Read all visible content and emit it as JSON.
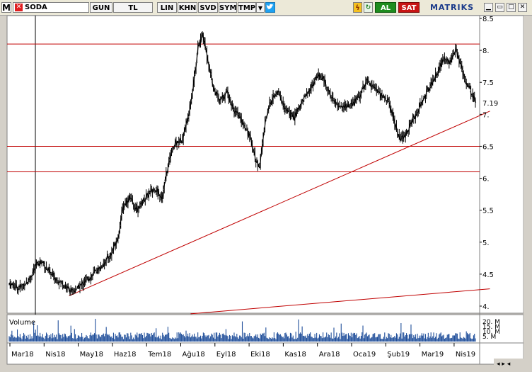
{
  "toolbar": {
    "logo": "M",
    "symbol": "SODA",
    "buttons": [
      "GUN",
      "TL",
      "LIN",
      "KHN",
      "SVD",
      "SYM",
      "TMP"
    ],
    "buy_label": "AL",
    "sell_label": "SAT",
    "brand": "MATRIKS"
  },
  "colors": {
    "candle": "#000000",
    "level_line": "#c00000",
    "trend_line": "#c00000",
    "volume_bar": "#1f4e9a",
    "panel_bg": "#ffffff",
    "frame_bg": "#d4d0c8"
  },
  "chart_data": {
    "type": "line",
    "symbol": "SODA",
    "y_axis": {
      "ticks": [
        "8.5",
        "8.",
        "7.5",
        "7.",
        "6.5",
        "6.",
        "5.5",
        "5.",
        "4.5",
        "4."
      ],
      "ylim": [
        3.95,
        8.55
      ]
    },
    "last_price_label": "7.19",
    "x_axis": {
      "ticks": [
        "Mar18",
        "Nis18",
        "May18",
        "Haz18",
        "Tem18",
        "Ağu18",
        "Eyl18",
        "Eki18",
        "Kas18",
        "Ara18",
        "Oca19",
        "Şub19",
        "Mar19",
        "Nis19"
      ]
    },
    "price_keypoints": [
      [
        0,
        4.35
      ],
      [
        10,
        4.28
      ],
      [
        20,
        4.38
      ],
      [
        30,
        4.65
      ],
      [
        36,
        4.7
      ],
      [
        45,
        4.5
      ],
      [
        55,
        4.4
      ],
      [
        62,
        4.3
      ],
      [
        70,
        4.22
      ],
      [
        78,
        4.32
      ],
      [
        88,
        4.45
      ],
      [
        100,
        4.6
      ],
      [
        112,
        4.82
      ],
      [
        120,
        5.1
      ],
      [
        125,
        5.55
      ],
      [
        132,
        5.7
      ],
      [
        140,
        5.5
      ],
      [
        150,
        5.7
      ],
      [
        160,
        5.85
      ],
      [
        168,
        5.7
      ],
      [
        172,
        6.0
      ],
      [
        178,
        6.4
      ],
      [
        183,
        6.55
      ],
      [
        190,
        6.6
      ],
      [
        196,
        6.9
      ],
      [
        202,
        7.4
      ],
      [
        208,
        8.05
      ],
      [
        213,
        8.25
      ],
      [
        218,
        7.9
      ],
      [
        225,
        7.4
      ],
      [
        232,
        7.2
      ],
      [
        240,
        7.35
      ],
      [
        248,
        7.05
      ],
      [
        256,
        6.9
      ],
      [
        262,
        6.75
      ],
      [
        268,
        6.5
      ],
      [
        272,
        6.25
      ],
      [
        276,
        6.2
      ],
      [
        282,
        6.9
      ],
      [
        288,
        7.2
      ],
      [
        296,
        7.35
      ],
      [
        305,
        7.05
      ],
      [
        314,
        6.95
      ],
      [
        324,
        7.25
      ],
      [
        332,
        7.4
      ],
      [
        340,
        7.62
      ],
      [
        346,
        7.55
      ],
      [
        352,
        7.35
      ],
      [
        360,
        7.15
      ],
      [
        368,
        7.12
      ],
      [
        378,
        7.15
      ],
      [
        386,
        7.3
      ],
      [
        394,
        7.55
      ],
      [
        402,
        7.42
      ],
      [
        410,
        7.3
      ],
      [
        418,
        7.2
      ],
      [
        424,
        6.9
      ],
      [
        430,
        6.6
      ],
      [
        436,
        6.65
      ],
      [
        442,
        6.85
      ],
      [
        450,
        7.05
      ],
      [
        458,
        7.3
      ],
      [
        466,
        7.5
      ],
      [
        474,
        7.72
      ],
      [
        480,
        7.9
      ],
      [
        486,
        7.82
      ],
      [
        492,
        8.0
      ],
      [
        498,
        7.75
      ],
      [
        504,
        7.5
      ],
      [
        510,
        7.3
      ],
      [
        514,
        7.19
      ]
    ],
    "price_x_max": 514,
    "horizontal_levels": [
      8.1,
      6.5,
      6.1
    ],
    "trend_lines": [
      {
        "from": [
          66,
          4.16
        ],
        "to": [
          530,
          7.05
        ]
      },
      {
        "from": [
          200,
          3.88
        ],
        "to": [
          530,
          4.27
        ]
      }
    ],
    "volume": {
      "label": "Volume",
      "ticks": [
        "20. M",
        "15. M",
        "10. M",
        "5. M"
      ],
      "max": 22
    }
  }
}
